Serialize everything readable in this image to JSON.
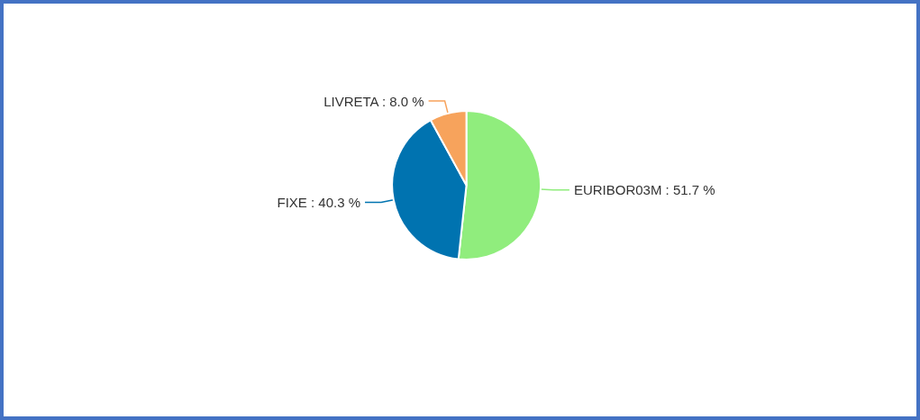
{
  "chart_data": {
    "type": "pie",
    "categories": [
      "EURIBOR03M",
      "FIXE",
      "LIVRETA"
    ],
    "values": [
      51.7,
      40.3,
      8.0
    ],
    "value_labels": [
      "51.7 %",
      "40.3 %",
      "8.0 %"
    ],
    "colors": [
      "#90ed7d",
      "#0073b0",
      "#f7a35c"
    ],
    "legend": false
  }
}
